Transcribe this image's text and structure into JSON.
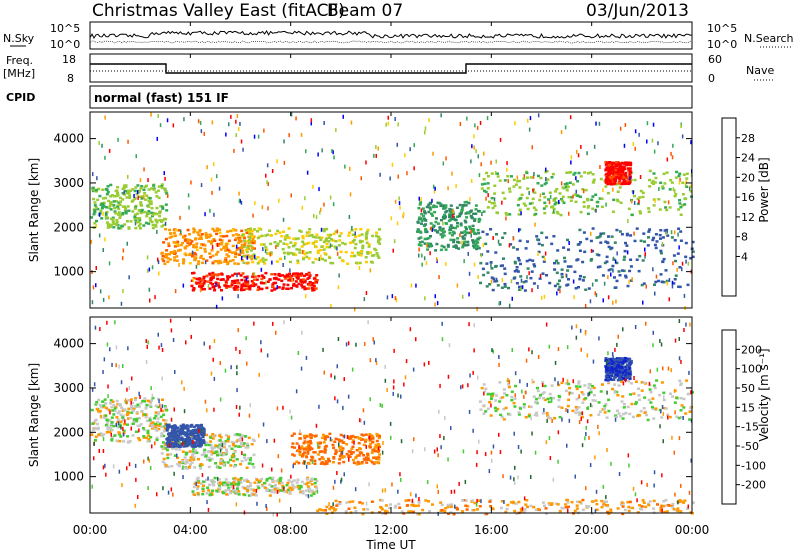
{
  "header": {
    "title": "Christmas Valley East (fitACF)",
    "beam": "Beam 07",
    "date": "03/Jun/2013"
  },
  "noise_panel": {
    "left_label": "N.Sky",
    "right_label": "N.Search",
    "tick_top": "10^5",
    "tick_bottom": "10^0",
    "right_tick_top": "10^5",
    "right_tick_bottom": "10^0"
  },
  "freq_panel": {
    "left_label_1": "Freq.",
    "left_label_2": "[MHz]",
    "left_ticks": [
      "18",
      "8"
    ],
    "right_label": "Nave",
    "right_ticks": [
      "60",
      "0"
    ]
  },
  "cpid": {
    "label": "CPID",
    "value": "normal (fast) 151 IF"
  },
  "power_panel": {
    "ylabel": "Slant Range [km]",
    "colorbar_label": "Power [dB]",
    "colorbar_ticks": [
      "28",
      "24",
      "20",
      "16",
      "12",
      "8",
      "4"
    ],
    "colorbar_colors": [
      "#ff0000",
      "#ff5500",
      "#ff9900",
      "#ffcc00",
      "#99cc33",
      "#33aa55",
      "#338866",
      "#3355aa",
      "#0000ff"
    ]
  },
  "velocity_panel": {
    "ylabel": "Slant Range [km]",
    "colorbar_label": "Velocity [m s⁻¹]",
    "colorbar_ticks": [
      "200",
      "100",
      "50",
      "15",
      "-15",
      "-50",
      "-100",
      "-200"
    ],
    "colorbar_colors": [
      "#1122cc",
      "#3355aa",
      "#226633",
      "#44cc33",
      "#c8c8c8",
      "#c8c8c8",
      "#ff9900",
      "#ff6600",
      "#ff0000"
    ]
  },
  "xaxis": {
    "label": "Time UT",
    "ticks": [
      "00:00",
      "04:00",
      "08:00",
      "12:00",
      "16:00",
      "20:00",
      "00:00"
    ]
  },
  "chart_data": [
    {
      "type": "heatmap",
      "name": "power",
      "xlabel": "Time UT",
      "ylabel": "Slant Range [km]",
      "xlim": [
        0,
        24
      ],
      "ylim": [
        180,
        4600
      ],
      "yticks": [
        1000,
        2000,
        3000,
        4000
      ],
      "zlabel": "Power [dB]",
      "zlim": [
        0,
        30
      ],
      "blobs": [
        {
          "t0": 0.0,
          "t1": 3.0,
          "r0": 2000,
          "r1": 3000,
          "z": 14
        },
        {
          "t0": 2.8,
          "t1": 6.5,
          "r0": 1200,
          "r1": 2000,
          "z": 22
        },
        {
          "t0": 4.0,
          "t1": 9.0,
          "r0": 600,
          "r1": 1000,
          "z": 28
        },
        {
          "t0": 6.0,
          "t1": 11.5,
          "r0": 1200,
          "r1": 2000,
          "z": 16
        },
        {
          "t0": 13.0,
          "t1": 15.5,
          "r0": 1500,
          "r1": 2600,
          "z": 10
        },
        {
          "t0": 15.5,
          "t1": 24.0,
          "r0": 2300,
          "r1": 3300,
          "z": 14
        },
        {
          "t0": 20.5,
          "t1": 21.5,
          "r0": 3000,
          "r1": 3500,
          "z": 28
        },
        {
          "t0": 15.5,
          "t1": 24.0,
          "r0": 600,
          "r1": 2000,
          "z": 6
        }
      ]
    },
    {
      "type": "heatmap",
      "name": "velocity",
      "xlabel": "Time UT",
      "ylabel": "Slant Range [km]",
      "xlim": [
        0,
        24
      ],
      "ylim": [
        180,
        4600
      ],
      "yticks": [
        1000,
        2000,
        3000,
        4000
      ],
      "zlabel": "Velocity [m s-1]",
      "zlim": [
        -200,
        200
      ],
      "blobs": [
        {
          "t0": 0.0,
          "t1": 3.0,
          "r0": 1800,
          "r1": 2800,
          "z": 0
        },
        {
          "t0": 2.8,
          "t1": 6.5,
          "r0": 1200,
          "r1": 2000,
          "z": 0
        },
        {
          "t0": 3.0,
          "t1": 4.5,
          "r0": 1700,
          "r1": 2200,
          "z": 150
        },
        {
          "t0": 4.0,
          "t1": 9.0,
          "r0": 600,
          "r1": 1000,
          "z": 0
        },
        {
          "t0": 8.0,
          "t1": 11.5,
          "r0": 1300,
          "r1": 2000,
          "z": -60
        },
        {
          "t0": 15.5,
          "t1": 24.0,
          "r0": 2300,
          "r1": 3200,
          "z": 0
        },
        {
          "t0": 20.5,
          "t1": 21.5,
          "r0": 3200,
          "r1": 3700,
          "z": 200
        },
        {
          "t0": 9.0,
          "t1": 24.0,
          "r0": 180,
          "r1": 500,
          "z": -30
        }
      ]
    }
  ]
}
